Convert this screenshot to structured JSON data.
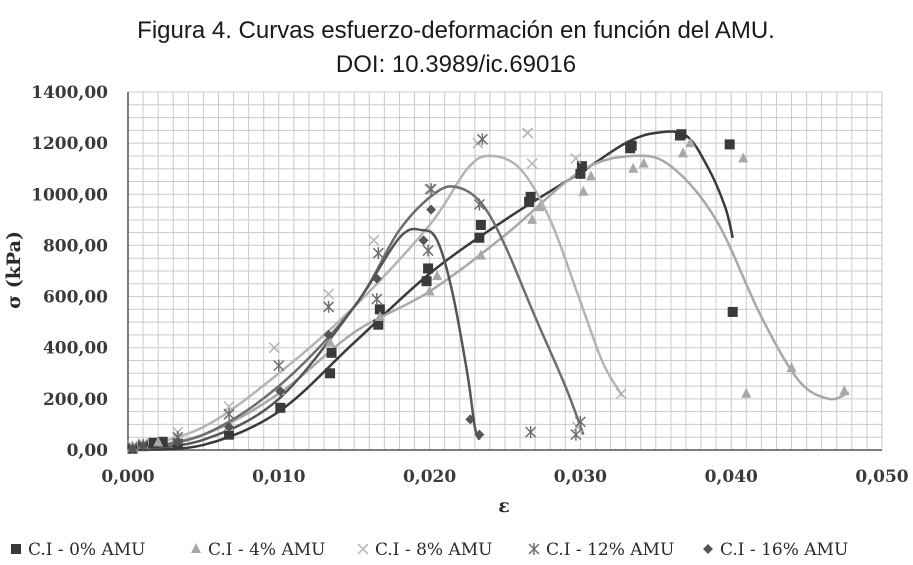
{
  "chart_data": {
    "type": "scatter",
    "title": "Figura 4. Curvas esfuerzo-deformación en función del AMU.",
    "subtitle": "DOI: 10.3989/ic.69016",
    "xlabel": "ε",
    "ylabel": "σ (kPa)",
    "xlim": [
      0,
      0.05
    ],
    "ylim": [
      0,
      1400
    ],
    "xticks": [
      0,
      0.01,
      0.02,
      0.03,
      0.04,
      0.05
    ],
    "xtick_labels": [
      "0,000",
      "0,010",
      "0,020",
      "0,030",
      "0,040",
      "0,050"
    ],
    "yticks": [
      0,
      200,
      400,
      600,
      800,
      1000,
      1200,
      1400
    ],
    "ytick_labels": [
      "0,00",
      "200,00",
      "400,00",
      "600,00",
      "800,00",
      "1000,00",
      "1200,00",
      "1400,00"
    ],
    "grid": true,
    "legend_position": "bottom",
    "series": [
      {
        "name": "C.I - 0% AMU",
        "marker": "square",
        "color": "#3a3a3a",
        "points": [
          [
            0.0003,
            5
          ],
          [
            0.001,
            15
          ],
          [
            0.0017,
            28
          ],
          [
            0.0023,
            32
          ],
          [
            0.0033,
            25
          ],
          [
            0.0067,
            60
          ],
          [
            0.0101,
            165
          ],
          [
            0.0134,
            300
          ],
          [
            0.0135,
            380
          ],
          [
            0.0166,
            490
          ],
          [
            0.0167,
            550
          ],
          [
            0.0198,
            660
          ],
          [
            0.0199,
            710
          ],
          [
            0.0233,
            830
          ],
          [
            0.0234,
            880
          ],
          [
            0.0266,
            970
          ],
          [
            0.0267,
            990
          ],
          [
            0.03,
            1080
          ],
          [
            0.0301,
            1110
          ],
          [
            0.0333,
            1180
          ],
          [
            0.0334,
            1190
          ],
          [
            0.0366,
            1230
          ],
          [
            0.0367,
            1235
          ],
          [
            0.0399,
            1195
          ],
          [
            0.0401,
            540
          ]
        ],
        "curve": [
          [
            0,
            0
          ],
          [
            0.005,
            20
          ],
          [
            0.01,
            150
          ],
          [
            0.015,
            420
          ],
          [
            0.02,
            690
          ],
          [
            0.025,
            900
          ],
          [
            0.03,
            1085
          ],
          [
            0.033,
            1200
          ],
          [
            0.035,
            1240
          ],
          [
            0.037,
            1230
          ],
          [
            0.0385,
            1100
          ],
          [
            0.0396,
            950
          ],
          [
            0.0401,
            830
          ]
        ]
      },
      {
        "name": "C.I - 4% AMU",
        "marker": "triangle",
        "color": "#a8a8a8",
        "points": [
          [
            0.0003,
            10
          ],
          [
            0.001,
            20
          ],
          [
            0.002,
            30
          ],
          [
            0.0033,
            40
          ],
          [
            0.0067,
            90
          ],
          [
            0.0101,
            230
          ],
          [
            0.0134,
            420
          ],
          [
            0.0167,
            520
          ],
          [
            0.02,
            620
          ],
          [
            0.0205,
            680
          ],
          [
            0.0234,
            760
          ],
          [
            0.0268,
            900
          ],
          [
            0.0273,
            950
          ],
          [
            0.0302,
            1010
          ],
          [
            0.0307,
            1070
          ],
          [
            0.0335,
            1100
          ],
          [
            0.0342,
            1120
          ],
          [
            0.0368,
            1160
          ],
          [
            0.0373,
            1200
          ],
          [
            0.0408,
            1140
          ],
          [
            0.041,
            220
          ],
          [
            0.044,
            320
          ],
          [
            0.0475,
            230
          ]
        ],
        "curve": [
          [
            0,
            0
          ],
          [
            0.005,
            60
          ],
          [
            0.01,
            220
          ],
          [
            0.015,
            460
          ],
          [
            0.02,
            620
          ],
          [
            0.025,
            840
          ],
          [
            0.03,
            1090
          ],
          [
            0.0335,
            1150
          ],
          [
            0.036,
            1110
          ],
          [
            0.039,
            900
          ],
          [
            0.042,
            520
          ],
          [
            0.0445,
            270
          ],
          [
            0.0465,
            200
          ],
          [
            0.0478,
            225
          ]
        ]
      },
      {
        "name": "C.I - 8% AMU",
        "marker": "x",
        "color": "#b4b4b4",
        "points": [
          [
            0.0003,
            15
          ],
          [
            0.001,
            25
          ],
          [
            0.0033,
            70
          ],
          [
            0.0067,
            170
          ],
          [
            0.0097,
            400
          ],
          [
            0.0133,
            610
          ],
          [
            0.0163,
            820
          ],
          [
            0.02,
            1020
          ],
          [
            0.0232,
            1200
          ],
          [
            0.0265,
            1240
          ],
          [
            0.0268,
            1120
          ],
          [
            0.0297,
            1140
          ],
          [
            0.0298,
            90
          ],
          [
            0.0327,
            220
          ]
        ],
        "curve": [
          [
            0,
            0
          ],
          [
            0.005,
            90
          ],
          [
            0.01,
            300
          ],
          [
            0.015,
            560
          ],
          [
            0.02,
            880
          ],
          [
            0.0225,
            1100
          ],
          [
            0.024,
            1150
          ],
          [
            0.026,
            1100
          ],
          [
            0.028,
            900
          ],
          [
            0.03,
            580
          ],
          [
            0.0315,
            340
          ],
          [
            0.0328,
            210
          ]
        ]
      },
      {
        "name": "C.I - 12% AMU",
        "marker": "asterisk",
        "color": "#6e6e6e",
        "points": [
          [
            0.0003,
            10
          ],
          [
            0.001,
            20
          ],
          [
            0.0033,
            50
          ],
          [
            0.0067,
            140
          ],
          [
            0.01,
            330
          ],
          [
            0.0133,
            560
          ],
          [
            0.0165,
            590
          ],
          [
            0.0166,
            770
          ],
          [
            0.0199,
            780
          ],
          [
            0.0201,
            1020
          ],
          [
            0.0233,
            960
          ],
          [
            0.0235,
            1215
          ],
          [
            0.0267,
            70
          ],
          [
            0.0297,
            60
          ],
          [
            0.03,
            110
          ]
        ],
        "curve": [
          [
            0,
            0
          ],
          [
            0.005,
            60
          ],
          [
            0.01,
            250
          ],
          [
            0.015,
            560
          ],
          [
            0.018,
            860
          ],
          [
            0.0205,
            1010
          ],
          [
            0.022,
            1025
          ],
          [
            0.0235,
            960
          ],
          [
            0.025,
            800
          ],
          [
            0.027,
            520
          ],
          [
            0.029,
            250
          ],
          [
            0.0302,
            60
          ]
        ]
      },
      {
        "name": "C.I - 16% AMU",
        "marker": "diamond",
        "color": "#555555",
        "points": [
          [
            0.0003,
            5
          ],
          [
            0.001,
            15
          ],
          [
            0.0033,
            30
          ],
          [
            0.0067,
            90
          ],
          [
            0.0101,
            230
          ],
          [
            0.0133,
            450
          ],
          [
            0.0165,
            670
          ],
          [
            0.0196,
            820
          ],
          [
            0.0201,
            940
          ],
          [
            0.0227,
            120
          ],
          [
            0.0233,
            60
          ]
        ],
        "curve": [
          [
            0,
            0
          ],
          [
            0.005,
            40
          ],
          [
            0.01,
            200
          ],
          [
            0.015,
            560
          ],
          [
            0.018,
            830
          ],
          [
            0.0195,
            860
          ],
          [
            0.0205,
            820
          ],
          [
            0.0215,
            620
          ],
          [
            0.0225,
            300
          ],
          [
            0.023,
            90
          ],
          [
            0.0233,
            40
          ]
        ]
      }
    ]
  }
}
